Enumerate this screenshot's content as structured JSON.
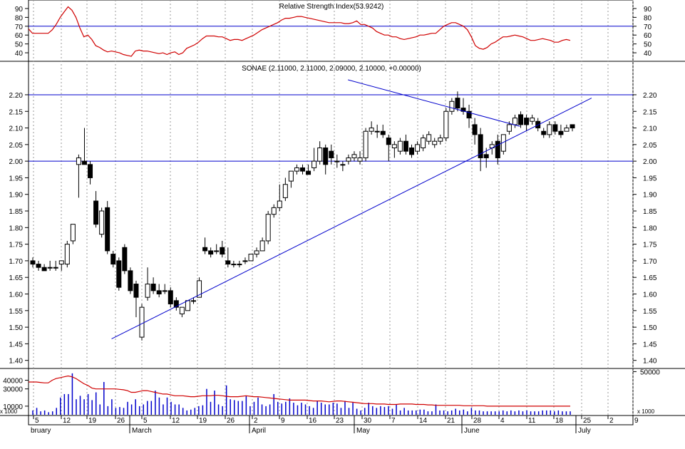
{
  "chart_data": [
    {
      "type": "line",
      "title": "Relative Strength Index(53.9242)",
      "ylim": [
        32,
        98
      ],
      "y_ticks": [
        40,
        50,
        60,
        70,
        80,
        90
      ],
      "reference_lines": [
        70
      ],
      "series": [
        {
          "color": "#d00000",
          "values": [
            67,
            62,
            62,
            62,
            62,
            62,
            66,
            72,
            80,
            86,
            92,
            88,
            80,
            68,
            58,
            60,
            55,
            48,
            46,
            43,
            41,
            42,
            41,
            40,
            38,
            37,
            36,
            42,
            43,
            42,
            42,
            41,
            40,
            39,
            40,
            38,
            40,
            41,
            38,
            40,
            45,
            47,
            49,
            52,
            56,
            59,
            59,
            59,
            58,
            58,
            56,
            54,
            55,
            55,
            54,
            56,
            58,
            60,
            63,
            66,
            68,
            70,
            72,
            74,
            77,
            79,
            79,
            80,
            81,
            81,
            80,
            79,
            78,
            77,
            76,
            75,
            74,
            74,
            74,
            74,
            73,
            73,
            74,
            76,
            72,
            72,
            70,
            68,
            64,
            62,
            60,
            60,
            58,
            58,
            56,
            55,
            56,
            57,
            58,
            60,
            60,
            61,
            62,
            62,
            66,
            70,
            72,
            74,
            74,
            72,
            70,
            66,
            58,
            48,
            45,
            44,
            46,
            50,
            52,
            55,
            58,
            58,
            59,
            60,
            59,
            58,
            56,
            54,
            54,
            55,
            56,
            55,
            54,
            52,
            52,
            54,
            55,
            54
          ]
        }
      ]
    },
    {
      "type": "candlestick",
      "title": "SONAE (2.11000, 2.11000, 2.09000, 2.10000, +0.00000)",
      "ylim": [
        1.38,
        2.26
      ],
      "y_ticks": [
        1.4,
        1.45,
        1.5,
        1.55,
        1.6,
        1.65,
        1.7,
        1.75,
        1.8,
        1.85,
        1.9,
        1.95,
        2.0,
        2.05,
        2.1,
        2.15,
        2.2
      ],
      "reference_lines": [
        2.0,
        2.2
      ],
      "trendlines": [
        {
          "from": [
            5.5,
            1.465
          ],
          "to": [
            39,
            2.19
          ],
          "color": "#0000cc"
        },
        {
          "from": [
            22,
            2.245
          ],
          "to": [
            34,
            2.105
          ],
          "color": "#0000cc"
        }
      ],
      "ohlc": [
        [
          1.7,
          1.71,
          1.68,
          1.69
        ],
        [
          1.69,
          1.7,
          1.67,
          1.68
        ],
        [
          1.68,
          1.69,
          1.67,
          1.67
        ],
        [
          1.68,
          1.7,
          1.67,
          1.68
        ],
        [
          1.68,
          1.7,
          1.67,
          1.68
        ],
        [
          1.69,
          1.7,
          1.67,
          1.7
        ],
        [
          1.69,
          1.76,
          1.68,
          1.75
        ],
        [
          1.76,
          1.81,
          1.75,
          1.81
        ],
        [
          1.99,
          2.02,
          1.89,
          2.01
        ],
        [
          2.0,
          2.1,
          1.99,
          1.99
        ],
        [
          1.99,
          2.0,
          1.93,
          1.95
        ],
        [
          1.88,
          1.91,
          1.8,
          1.81
        ],
        [
          1.78,
          1.86,
          1.77,
          1.85
        ],
        [
          1.86,
          1.88,
          1.72,
          1.73
        ],
        [
          1.72,
          1.73,
          1.68,
          1.69
        ],
        [
          1.7,
          1.71,
          1.61,
          1.62
        ],
        [
          1.74,
          1.75,
          1.66,
          1.67
        ],
        [
          1.67,
          1.68,
          1.6,
          1.61
        ],
        [
          1.63,
          1.64,
          1.53,
          1.59
        ],
        [
          1.47,
          1.57,
          1.46,
          1.56
        ],
        [
          1.59,
          1.68,
          1.58,
          1.63
        ],
        [
          1.63,
          1.65,
          1.6,
          1.61
        ],
        [
          1.61,
          1.63,
          1.59,
          1.6
        ],
        [
          1.61,
          1.63,
          1.6,
          1.61
        ],
        [
          1.61,
          1.62,
          1.56,
          1.57
        ],
        [
          1.58,
          1.59,
          1.55,
          1.56
        ],
        [
          1.54,
          1.56,
          1.53,
          1.56
        ],
        [
          1.55,
          1.58,
          1.55,
          1.58
        ],
        [
          1.58,
          1.59,
          1.57,
          1.58
        ],
        [
          1.59,
          1.65,
          1.59,
          1.64
        ],
        [
          1.74,
          1.77,
          1.72,
          1.73
        ],
        [
          1.73,
          1.74,
          1.71,
          1.72
        ],
        [
          1.73,
          1.75,
          1.72,
          1.73
        ],
        [
          1.74,
          1.76,
          1.71,
          1.72
        ],
        [
          1.7,
          1.74,
          1.68,
          1.69
        ],
        [
          1.69,
          1.7,
          1.68,
          1.69
        ],
        [
          1.69,
          1.7,
          1.68,
          1.69
        ],
        [
          1.7,
          1.71,
          1.69,
          1.7
        ],
        [
          1.7,
          1.72,
          1.7,
          1.72
        ],
        [
          1.72,
          1.74,
          1.71,
          1.73
        ],
        [
          1.73,
          1.77,
          1.73,
          1.76
        ],
        [
          1.76,
          1.85,
          1.75,
          1.84
        ],
        [
          1.84,
          1.87,
          1.83,
          1.86
        ],
        [
          1.86,
          1.93,
          1.85,
          1.88
        ],
        [
          1.89,
          1.95,
          1.88,
          1.93
        ],
        [
          1.94,
          1.97,
          1.92,
          1.97
        ],
        [
          1.97,
          1.99,
          1.96,
          1.98
        ],
        [
          1.98,
          1.99,
          1.96,
          1.97
        ],
        [
          1.97,
          1.99,
          1.96,
          1.96
        ],
        [
          1.98,
          2.04,
          1.97,
          2.0
        ],
        [
          2.0,
          2.06,
          1.99,
          2.04
        ],
        [
          2.04,
          2.05,
          1.96,
          1.99
        ],
        [
          2.03,
          2.05,
          1.99,
          2.01
        ],
        [
          2.0,
          2.02,
          1.98,
          2.0
        ],
        [
          1.99,
          2.0,
          1.97,
          1.99
        ],
        [
          2.0,
          2.02,
          1.99,
          2.01
        ],
        [
          2.01,
          2.03,
          2.0,
          2.02
        ],
        [
          2.0,
          2.03,
          1.99,
          2.01
        ],
        [
          2.01,
          2.1,
          2.0,
          2.09
        ],
        [
          2.09,
          2.12,
          2.08,
          2.1
        ],
        [
          2.09,
          2.11,
          2.07,
          2.09
        ],
        [
          2.09,
          2.11,
          2.07,
          2.08
        ],
        [
          2.07,
          2.08,
          2.0,
          2.05
        ],
        [
          2.04,
          2.06,
          2.01,
          2.05
        ],
        [
          2.03,
          2.07,
          2.02,
          2.06
        ],
        [
          2.06,
          2.08,
          2.02,
          2.03
        ],
        [
          2.04,
          2.05,
          2.01,
          2.02
        ],
        [
          2.03,
          2.06,
          2.02,
          2.05
        ],
        [
          2.04,
          2.08,
          2.03,
          2.07
        ],
        [
          2.06,
          2.09,
          2.05,
          2.08
        ],
        [
          2.05,
          2.07,
          2.04,
          2.06
        ],
        [
          2.06,
          2.08,
          2.05,
          2.07
        ],
        [
          2.07,
          2.16,
          2.06,
          2.15
        ],
        [
          2.15,
          2.19,
          2.14,
          2.18
        ],
        [
          2.19,
          2.21,
          2.15,
          2.16
        ],
        [
          2.16,
          2.19,
          2.14,
          2.15
        ],
        [
          2.15,
          2.17,
          2.1,
          2.13
        ],
        [
          2.11,
          2.13,
          2.05,
          2.08
        ],
        [
          2.08,
          2.1,
          1.97,
          2.01
        ],
        [
          2.02,
          2.04,
          1.98,
          2.01
        ],
        [
          2.04,
          2.06,
          2.02,
          2.05
        ],
        [
          2.06,
          2.08,
          1.99,
          2.01
        ],
        [
          2.03,
          2.08,
          2.02,
          2.08
        ],
        [
          2.09,
          2.12,
          2.08,
          2.11
        ],
        [
          2.11,
          2.14,
          2.1,
          2.13
        ],
        [
          2.14,
          2.15,
          2.1,
          2.11
        ],
        [
          2.13,
          2.14,
          2.09,
          2.11
        ],
        [
          2.12,
          2.14,
          2.11,
          2.13
        ],
        [
          2.12,
          2.13,
          2.09,
          2.1
        ],
        [
          2.09,
          2.1,
          2.07,
          2.08
        ],
        [
          2.08,
          2.12,
          2.07,
          2.11
        ],
        [
          2.11,
          2.12,
          2.08,
          2.09
        ],
        [
          2.09,
          2.11,
          2.07,
          2.08
        ],
        [
          2.09,
          2.11,
          2.09,
          2.1
        ],
        [
          2.11,
          2.11,
          2.09,
          2.1
        ]
      ]
    },
    {
      "type": "bar",
      "title": "",
      "y_unit": "x 1000",
      "ylim": [
        0,
        52000
      ],
      "y_ticks_left": [
        10000,
        30000,
        40000
      ],
      "y_ticks_right": [
        50000
      ],
      "values": [
        5000,
        8000,
        4000,
        5000,
        3000,
        4000,
        8000,
        20000,
        24000,
        24000,
        48000,
        18000,
        22000,
        18000,
        24000,
        17000,
        26000,
        12000,
        38000,
        10000,
        18000,
        8000,
        9000,
        8000,
        15000,
        12000,
        18000,
        10000,
        12000,
        16000,
        16000,
        28000,
        20000,
        12000,
        20000,
        15000,
        12000,
        12000,
        8000,
        5000,
        6000,
        8000,
        10000,
        11000,
        30000,
        15000,
        28000,
        12000,
        10000,
        34000,
        18000,
        17000,
        16000,
        16000,
        22000,
        10000,
        15000,
        20000,
        12000,
        10000,
        12000,
        24000,
        15000,
        13000,
        15000,
        19000,
        14000,
        11000,
        14000,
        12000,
        10000,
        8000,
        16000,
        14000,
        12000,
        12000,
        14000,
        13000,
        8000,
        16000,
        8000,
        14000,
        7000,
        5000,
        8000,
        14000,
        10000,
        8000,
        10000,
        9000,
        10000,
        7000,
        12000,
        5000,
        8000,
        5000,
        5000,
        5000,
        6000,
        6000,
        4000,
        4000,
        12000,
        5000,
        5000,
        4000,
        5000,
        7000,
        5000,
        6000,
        4000,
        8000,
        5000,
        5000,
        4000,
        4000,
        4000,
        4000,
        4000,
        5000,
        4000,
        5000,
        4000,
        5000,
        4000,
        5000,
        4000,
        4000,
        4000,
        5000,
        5000,
        5000,
        4000,
        5000,
        4000,
        4000,
        4000
      ],
      "series": [
        {
          "color": "#d00000",
          "values": [
            38000,
            38000,
            38000,
            37500,
            37000,
            37000,
            40000,
            42000,
            43000,
            44000,
            45000,
            44000,
            42000,
            39000,
            36000,
            34000,
            31000,
            30000,
            30000,
            30000,
            30000,
            30000,
            30000,
            29500,
            29000,
            28000,
            26000,
            26000,
            27000,
            28000,
            28000,
            27000,
            26000,
            25000,
            24000,
            24000,
            23000,
            22000,
            22000,
            22000,
            21500,
            21000,
            21000,
            21500,
            22000,
            22000,
            22000,
            22500,
            22500,
            22000,
            21500,
            21000,
            21000,
            21000,
            21500,
            22000,
            21500,
            21000,
            21000,
            20500,
            20000,
            19500,
            19000,
            18500,
            18000,
            17500,
            17000,
            17000,
            17000,
            17000,
            17000,
            16500,
            16000,
            16000,
            16000,
            15500,
            15000,
            15500,
            16000,
            16000,
            15500,
            15000,
            14500,
            14000,
            13500,
            13000,
            13000,
            13000,
            12500,
            12500,
            12500,
            12000,
            12000,
            12000,
            12500,
            12500,
            12500,
            12500,
            12000,
            12000,
            12000,
            11500,
            11500,
            11000,
            11000,
            11000,
            11000,
            11000,
            11000,
            11000,
            10500,
            10500,
            10500,
            10500,
            10500,
            10500,
            10000,
            10000,
            10000,
            10000,
            10000,
            10000,
            10000,
            10000,
            10000,
            10000,
            10000,
            10000,
            10000,
            10000,
            10000,
            10000,
            10000,
            10000,
            10000,
            10000,
            10000,
            10000
          ]
        }
      ]
    }
  ],
  "x_axis": {
    "week_ticks": [
      "5",
      "12",
      "19",
      "26",
      "5",
      "12",
      "19",
      "26",
      "2",
      "9",
      "16",
      "23",
      "30",
      "7",
      "14",
      "21",
      "28",
      "4",
      "11",
      "18",
      "25",
      "2",
      "9"
    ],
    "months": [
      "bruary",
      "March",
      "April",
      "May",
      "June",
      "July"
    ]
  }
}
